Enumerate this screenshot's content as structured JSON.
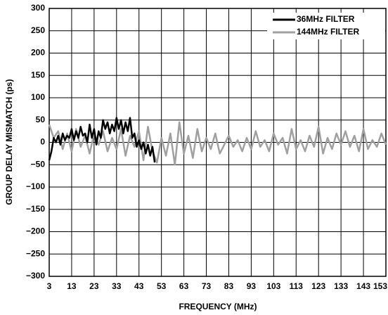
{
  "chart_data": {
    "type": "line",
    "xlabel": "FREQUENCY (MHz)",
    "ylabel": "GROUP DELAY MISMATCH (ps)",
    "xlim": [
      3,
      153
    ],
    "ylim": [
      -300,
      300
    ],
    "xticks": [
      3,
      13,
      23,
      33,
      43,
      53,
      63,
      73,
      83,
      93,
      103,
      113,
      123,
      133,
      143,
      153
    ],
    "yticks": [
      {
        "value": -300,
        "label": "−300"
      },
      {
        "value": -250,
        "label": "−250"
      },
      {
        "value": -200,
        "label": "−200"
      },
      {
        "value": -150,
        "label": "−150"
      },
      {
        "value": -100,
        "label": "−100"
      },
      {
        "value": -50,
        "label": "−50"
      },
      0,
      50,
      100,
      150,
      200,
      250,
      300
    ],
    "grid": true,
    "legend": "upper-right",
    "series": [
      {
        "name": "144MHz FILTER",
        "color": "#a0a0a0",
        "x": [
          3,
          5,
          7,
          9,
          11,
          13,
          15,
          17,
          19,
          21,
          23,
          25,
          27,
          29,
          31,
          33,
          35,
          37,
          39,
          41,
          43,
          45,
          47,
          49,
          51,
          53,
          55,
          57,
          59,
          61,
          63,
          65,
          67,
          69,
          71,
          73,
          75,
          77,
          79,
          81,
          83,
          85,
          87,
          89,
          91,
          93,
          95,
          97,
          99,
          101,
          103,
          105,
          107,
          109,
          111,
          113,
          115,
          117,
          119,
          121,
          123,
          125,
          127,
          129,
          131,
          133,
          135,
          137,
          139,
          141,
          143,
          145,
          147,
          149,
          151,
          153
        ],
        "values": [
          40,
          10,
          25,
          -15,
          20,
          -20,
          30,
          -10,
          15,
          -25,
          20,
          -5,
          25,
          -20,
          10,
          -15,
          30,
          -30,
          15,
          -10,
          25,
          -40,
          35,
          -20,
          -45,
          10,
          -30,
          20,
          -50,
          45,
          -25,
          15,
          -35,
          30,
          -20,
          10,
          -15,
          20,
          -25,
          -5,
          15,
          -10,
          5,
          -20,
          10,
          -15,
          25,
          -10,
          5,
          -20,
          20,
          -5,
          10,
          -25,
          30,
          -15,
          5,
          -20,
          15,
          -10,
          35,
          -25,
          10,
          -15,
          20,
          -5,
          25,
          -10,
          15,
          -20,
          30,
          -15,
          5,
          -10,
          20,
          -5
        ]
      },
      {
        "name": "36MHz FILTER",
        "color": "#000000",
        "x": [
          3,
          4,
          5,
          6,
          7,
          8,
          9,
          10,
          11,
          12,
          13,
          14,
          15,
          16,
          17,
          18,
          19,
          20,
          21,
          22,
          23,
          24,
          25,
          26,
          27,
          28,
          29,
          30,
          31,
          32,
          33,
          34,
          35,
          36,
          37,
          38,
          39,
          40,
          41,
          42,
          43,
          44,
          45,
          46,
          47,
          48,
          49,
          50
        ],
        "values": [
          -40,
          -20,
          10,
          0,
          15,
          -5,
          20,
          5,
          15,
          10,
          30,
          5,
          25,
          10,
          35,
          15,
          20,
          0,
          40,
          10,
          30,
          -5,
          25,
          10,
          50,
          30,
          45,
          20,
          40,
          25,
          55,
          30,
          50,
          20,
          45,
          25,
          55,
          10,
          20,
          -10,
          5,
          -15,
          0,
          -25,
          -5,
          -30,
          -10,
          -45
        ]
      }
    ]
  }
}
